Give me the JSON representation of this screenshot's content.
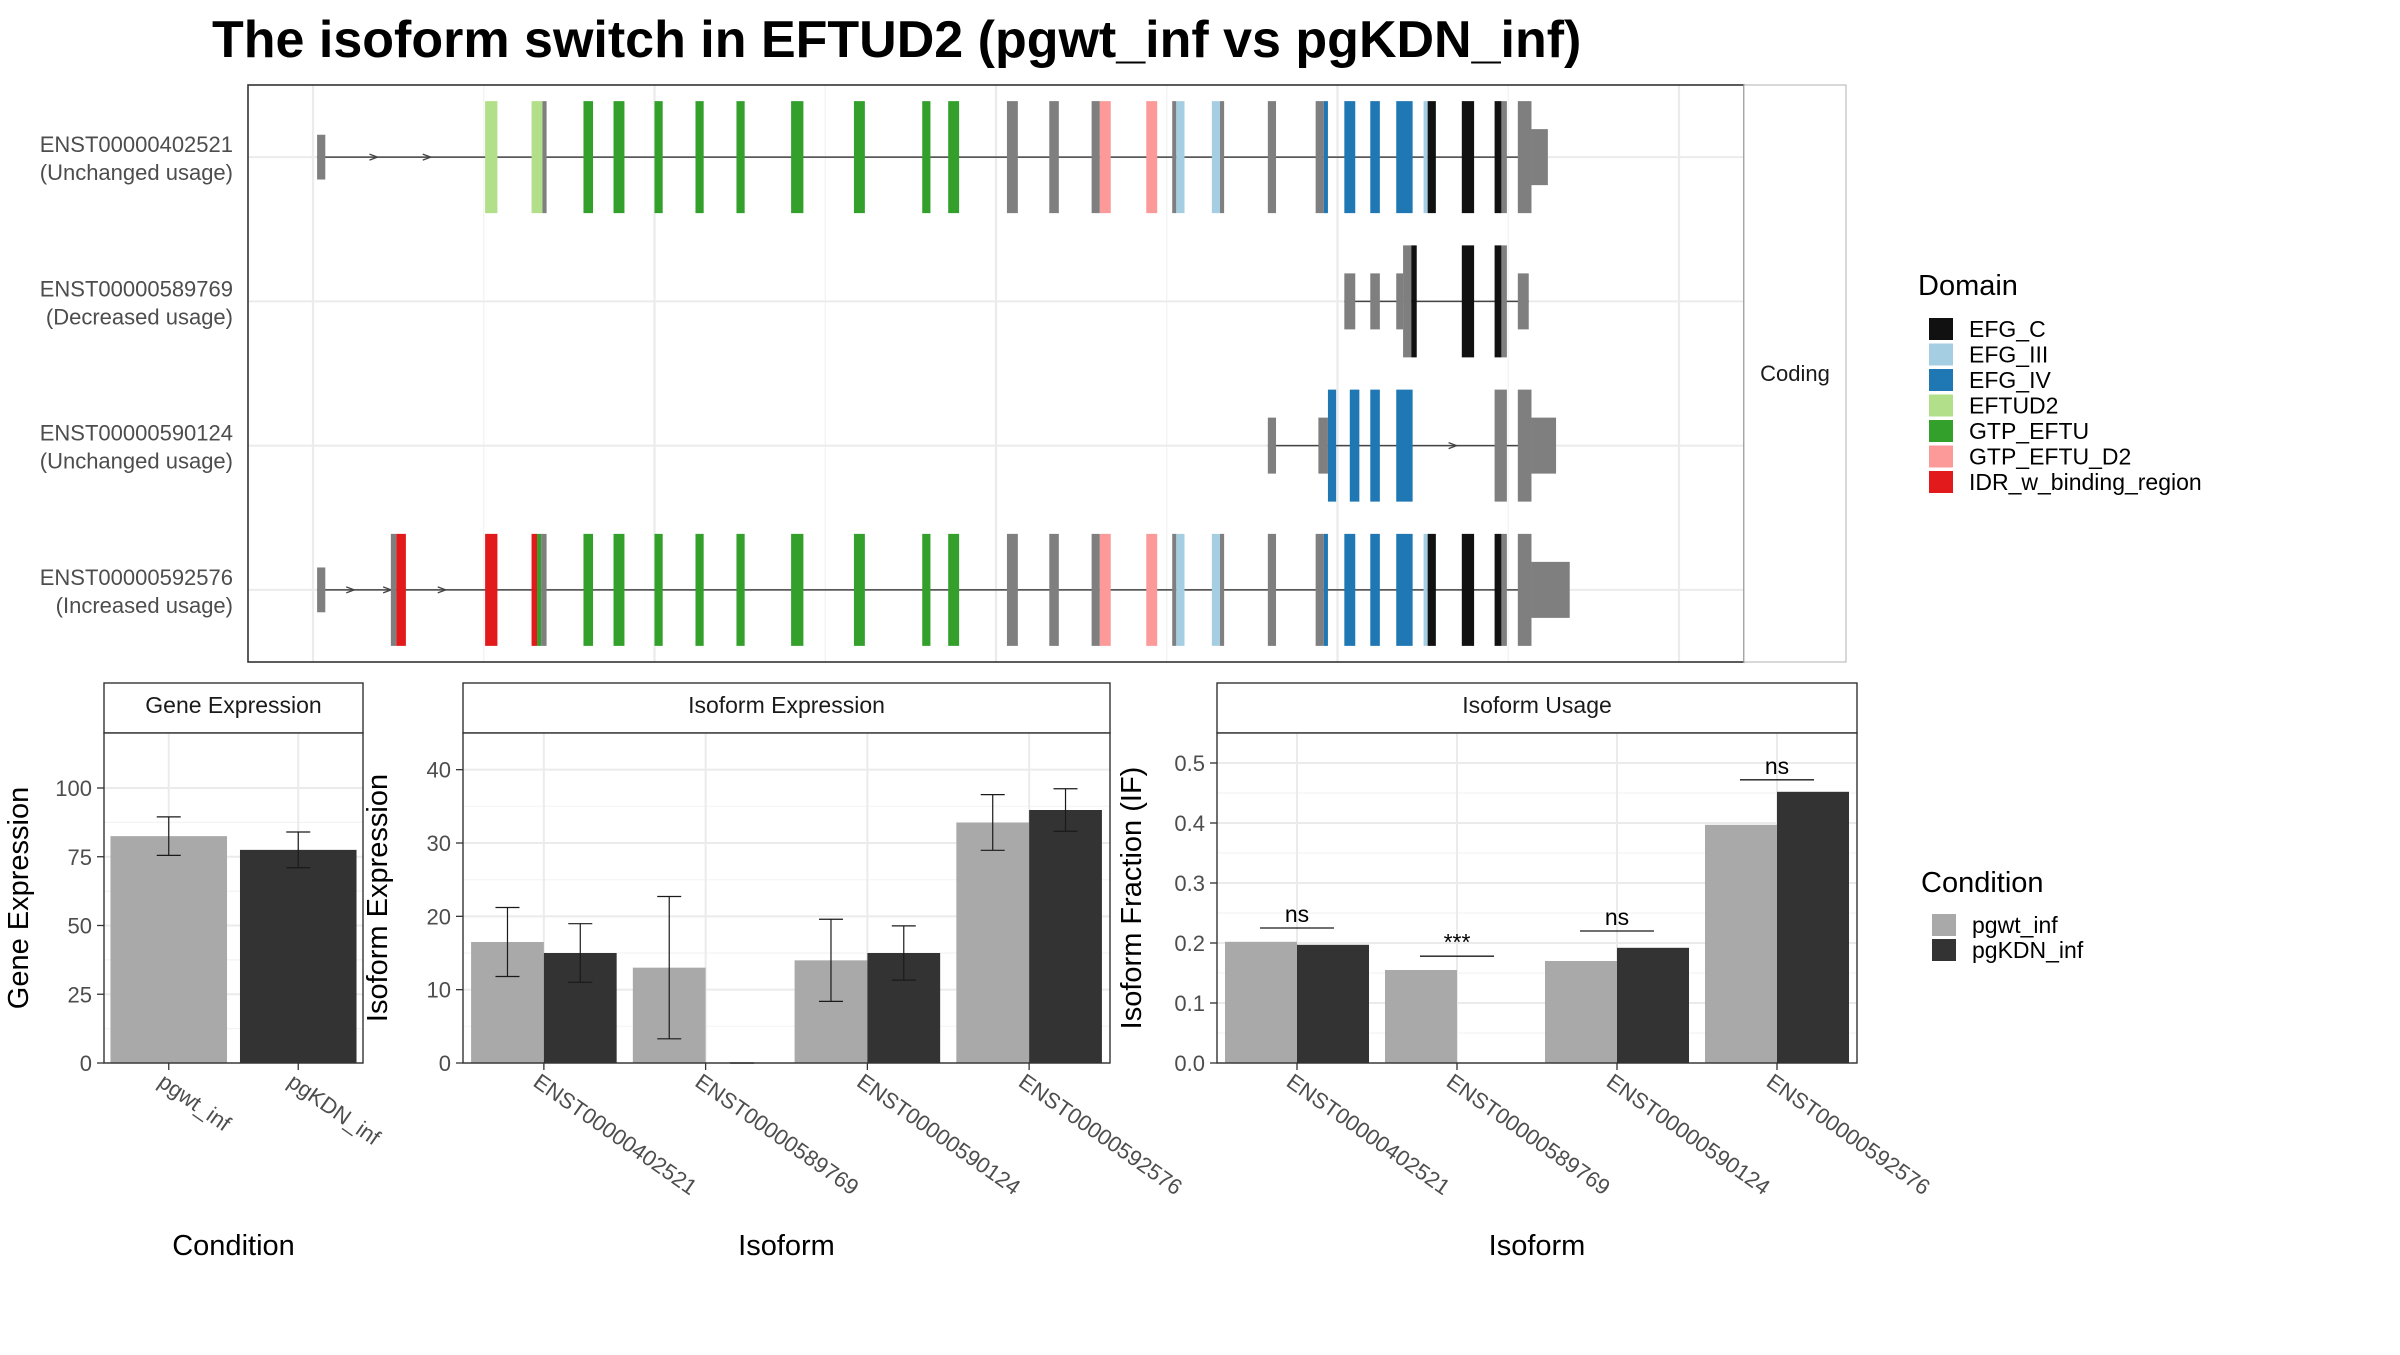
{
  "title": "The isoform switch in EFTUD2 (pgwt_inf vs pgKDN_inf)",
  "structure": {
    "facet_label": "Coding",
    "colors": {
      "intron": "#444444",
      "uncolored_exon": "#7f7f7f",
      "grid": "#ebebeb"
    },
    "transcripts": [
      {
        "id": "ENST00000402521",
        "usage": "(Unchanged usage)",
        "intron_range": [
          0.3,
          89.2
        ],
        "arrows": [
          4.5,
          8.4
        ],
        "exons": [
          {
            "start": 0.3,
            "end": 0.9,
            "h": 0.4,
            "domain": ""
          },
          {
            "start": 12.6,
            "end": 13.5,
            "h": 1,
            "domain": "EFTUD2"
          },
          {
            "start": 16.0,
            "end": 16.8,
            "h": 1,
            "domain": "EFTUD2"
          },
          {
            "start": 16.8,
            "end": 17.1,
            "h": 1,
            "domain": ""
          },
          {
            "start": 19.8,
            "end": 20.5,
            "h": 1,
            "domain": "GTP_EFTU"
          },
          {
            "start": 22.0,
            "end": 22.8,
            "h": 1,
            "domain": "GTP_EFTU"
          },
          {
            "start": 25.0,
            "end": 25.6,
            "h": 1,
            "domain": "GTP_EFTU"
          },
          {
            "start": 28.0,
            "end": 28.6,
            "h": 1,
            "domain": "GTP_EFTU"
          },
          {
            "start": 31.0,
            "end": 31.6,
            "h": 1,
            "domain": "GTP_EFTU"
          },
          {
            "start": 35.0,
            "end": 35.9,
            "h": 1,
            "domain": "GTP_EFTU"
          },
          {
            "start": 39.6,
            "end": 40.4,
            "h": 1,
            "domain": "GTP_EFTU"
          },
          {
            "start": 44.6,
            "end": 45.2,
            "h": 1,
            "domain": "GTP_EFTU"
          },
          {
            "start": 46.5,
            "end": 47.3,
            "h": 1,
            "domain": "GTP_EFTU"
          },
          {
            "start": 50.8,
            "end": 51.6,
            "h": 1,
            "domain": ""
          },
          {
            "start": 53.9,
            "end": 54.6,
            "h": 1,
            "domain": ""
          },
          {
            "start": 57.0,
            "end": 57.6,
            "h": 1,
            "domain": ""
          },
          {
            "start": 57.6,
            "end": 58.4,
            "h": 1,
            "domain": "GTP_EFTU_D2"
          },
          {
            "start": 61.0,
            "end": 61.8,
            "h": 1,
            "domain": "GTP_EFTU_D2"
          },
          {
            "start": 62.9,
            "end": 63.2,
            "h": 1,
            "domain": ""
          },
          {
            "start": 63.2,
            "end": 63.8,
            "h": 1,
            "domain": "EFG_III"
          },
          {
            "start": 65.8,
            "end": 66.4,
            "h": 1,
            "domain": "EFG_III"
          },
          {
            "start": 66.4,
            "end": 66.7,
            "h": 1,
            "domain": ""
          },
          {
            "start": 69.9,
            "end": 70.5,
            "h": 1,
            "domain": ""
          },
          {
            "start": 73.4,
            "end": 74.0,
            "h": 1,
            "domain": ""
          },
          {
            "start": 74.0,
            "end": 74.3,
            "h": 1,
            "domain": "EFG_IV"
          },
          {
            "start": 75.5,
            "end": 76.3,
            "h": 1,
            "domain": "EFG_IV"
          },
          {
            "start": 77.4,
            "end": 78.1,
            "h": 1,
            "domain": "EFG_IV"
          },
          {
            "start": 79.3,
            "end": 80.5,
            "h": 1,
            "domain": "EFG_IV"
          },
          {
            "start": 81.3,
            "end": 81.6,
            "h": 1,
            "domain": "EFG_III"
          },
          {
            "start": 81.6,
            "end": 82.2,
            "h": 1,
            "domain": "EFG_C"
          },
          {
            "start": 84.1,
            "end": 85.0,
            "h": 1,
            "domain": "EFG_C"
          },
          {
            "start": 86.5,
            "end": 87.0,
            "h": 1,
            "domain": "EFG_C"
          },
          {
            "start": 87.0,
            "end": 87.4,
            "h": 1,
            "domain": ""
          },
          {
            "start": 88.2,
            "end": 89.2,
            "h": 1,
            "domain": ""
          },
          {
            "start": 89.2,
            "end": 90.4,
            "h": 0.5,
            "domain": ""
          }
        ]
      },
      {
        "id": "ENST00000589769",
        "usage": "(Decreased usage)",
        "intron_range": [
          75.5,
          89.0
        ],
        "arrows": [],
        "exons": [
          {
            "start": 75.5,
            "end": 76.3,
            "h": 0.5,
            "domain": ""
          },
          {
            "start": 77.4,
            "end": 78.1,
            "h": 0.5,
            "domain": ""
          },
          {
            "start": 79.3,
            "end": 79.8,
            "h": 0.5,
            "domain": ""
          },
          {
            "start": 79.8,
            "end": 80.4,
            "h": 1,
            "domain": ""
          },
          {
            "start": 80.4,
            "end": 80.8,
            "h": 1,
            "domain": "EFG_C"
          },
          {
            "start": 84.1,
            "end": 85.0,
            "h": 1,
            "domain": "EFG_C"
          },
          {
            "start": 86.5,
            "end": 87.0,
            "h": 1,
            "domain": "EFG_C"
          },
          {
            "start": 87.0,
            "end": 87.4,
            "h": 1,
            "domain": ""
          },
          {
            "start": 88.2,
            "end": 89.0,
            "h": 0.5,
            "domain": ""
          }
        ]
      },
      {
        "id": "ENST00000590124",
        "usage": "(Unchanged usage)",
        "intron_range": [
          69.9,
          89.2
        ],
        "arrows": [
          83.5
        ],
        "exons": [
          {
            "start": 69.9,
            "end": 70.5,
            "h": 0.5,
            "domain": ""
          },
          {
            "start": 73.6,
            "end": 74.3,
            "h": 0.5,
            "domain": ""
          },
          {
            "start": 74.3,
            "end": 74.9,
            "h": 1,
            "domain": "EFG_IV"
          },
          {
            "start": 75.9,
            "end": 76.6,
            "h": 1,
            "domain": "EFG_IV"
          },
          {
            "start": 77.4,
            "end": 78.1,
            "h": 1,
            "domain": "EFG_IV"
          },
          {
            "start": 79.3,
            "end": 80.5,
            "h": 1,
            "domain": "EFG_IV"
          },
          {
            "start": 86.5,
            "end": 87.4,
            "h": 1,
            "domain": ""
          },
          {
            "start": 88.2,
            "end": 89.2,
            "h": 1,
            "domain": ""
          },
          {
            "start": 89.2,
            "end": 91.0,
            "h": 0.5,
            "domain": ""
          }
        ]
      },
      {
        "id": "ENST00000592576",
        "usage": "(Increased usage)",
        "intron_range": [
          0.3,
          89.2
        ],
        "arrows": [
          2.8,
          5.5,
          9.5
        ],
        "exons": [
          {
            "start": 0.3,
            "end": 0.9,
            "h": 0.4,
            "domain": ""
          },
          {
            "start": 5.7,
            "end": 6.1,
            "h": 1,
            "domain": ""
          },
          {
            "start": 6.1,
            "end": 6.8,
            "h": 1,
            "domain": "IDR_w_binding_region"
          },
          {
            "start": 12.6,
            "end": 13.5,
            "h": 1,
            "domain": "IDR_w_binding_region"
          },
          {
            "start": 16.0,
            "end": 16.4,
            "h": 1,
            "domain": "IDR_w_binding_region"
          },
          {
            "start": 16.4,
            "end": 16.7,
            "h": 1,
            "domain": "GTP_EFTU"
          },
          {
            "start": 16.7,
            "end": 17.1,
            "h": 1,
            "domain": ""
          },
          {
            "start": 19.8,
            "end": 20.5,
            "h": 1,
            "domain": "GTP_EFTU"
          },
          {
            "start": 22.0,
            "end": 22.8,
            "h": 1,
            "domain": "GTP_EFTU"
          },
          {
            "start": 25.0,
            "end": 25.6,
            "h": 1,
            "domain": "GTP_EFTU"
          },
          {
            "start": 28.0,
            "end": 28.6,
            "h": 1,
            "domain": "GTP_EFTU"
          },
          {
            "start": 31.0,
            "end": 31.6,
            "h": 1,
            "domain": "GTP_EFTU"
          },
          {
            "start": 35.0,
            "end": 35.9,
            "h": 1,
            "domain": "GTP_EFTU"
          },
          {
            "start": 39.6,
            "end": 40.4,
            "h": 1,
            "domain": "GTP_EFTU"
          },
          {
            "start": 44.6,
            "end": 45.2,
            "h": 1,
            "domain": "GTP_EFTU"
          },
          {
            "start": 46.5,
            "end": 47.3,
            "h": 1,
            "domain": "GTP_EFTU"
          },
          {
            "start": 50.8,
            "end": 51.6,
            "h": 1,
            "domain": ""
          },
          {
            "start": 53.9,
            "end": 54.6,
            "h": 1,
            "domain": ""
          },
          {
            "start": 57.0,
            "end": 57.6,
            "h": 1,
            "domain": ""
          },
          {
            "start": 57.6,
            "end": 58.4,
            "h": 1,
            "domain": "GTP_EFTU_D2"
          },
          {
            "start": 61.0,
            "end": 61.8,
            "h": 1,
            "domain": "GTP_EFTU_D2"
          },
          {
            "start": 62.9,
            "end": 63.2,
            "h": 1,
            "domain": ""
          },
          {
            "start": 63.2,
            "end": 63.8,
            "h": 1,
            "domain": "EFG_III"
          },
          {
            "start": 65.8,
            "end": 66.4,
            "h": 1,
            "domain": "EFG_III"
          },
          {
            "start": 66.4,
            "end": 66.7,
            "h": 1,
            "domain": ""
          },
          {
            "start": 69.9,
            "end": 70.5,
            "h": 1,
            "domain": ""
          },
          {
            "start": 73.4,
            "end": 74.0,
            "h": 1,
            "domain": ""
          },
          {
            "start": 74.0,
            "end": 74.3,
            "h": 1,
            "domain": "EFG_IV"
          },
          {
            "start": 75.5,
            "end": 76.3,
            "h": 1,
            "domain": "EFG_IV"
          },
          {
            "start": 77.4,
            "end": 78.1,
            "h": 1,
            "domain": "EFG_IV"
          },
          {
            "start": 79.3,
            "end": 80.5,
            "h": 1,
            "domain": "EFG_IV"
          },
          {
            "start": 81.3,
            "end": 81.6,
            "h": 1,
            "domain": "EFG_III"
          },
          {
            "start": 81.6,
            "end": 82.2,
            "h": 1,
            "domain": "EFG_C"
          },
          {
            "start": 84.1,
            "end": 85.0,
            "h": 1,
            "domain": "EFG_C"
          },
          {
            "start": 86.5,
            "end": 87.0,
            "h": 1,
            "domain": "EFG_C"
          },
          {
            "start": 87.0,
            "end": 87.4,
            "h": 1,
            "domain": ""
          },
          {
            "start": 88.2,
            "end": 89.2,
            "h": 1,
            "domain": ""
          },
          {
            "start": 89.2,
            "end": 92.0,
            "h": 0.5,
            "domain": ""
          }
        ]
      }
    ]
  },
  "domain_legend": {
    "title": "Domain",
    "items": [
      {
        "name": "EFG_C",
        "color": "#111111"
      },
      {
        "name": "EFG_III",
        "color": "#a6cee3"
      },
      {
        "name": "EFG_IV",
        "color": "#1f78b4"
      },
      {
        "name": "EFTUD2",
        "color": "#b2df8a"
      },
      {
        "name": "GTP_EFTU",
        "color": "#33a02c"
      },
      {
        "name": "GTP_EFTU_D2",
        "color": "#fb9a99"
      },
      {
        "name": "IDR_w_binding_region",
        "color": "#e31a1c"
      }
    ]
  },
  "condition_legend": {
    "title": "Condition",
    "items": [
      {
        "name": "pgwt_inf",
        "color": "#a9a9a9"
      },
      {
        "name": "pgKDN_inf",
        "color": "#333333"
      }
    ]
  },
  "chart_data": [
    {
      "type": "bar",
      "title": "Gene Expression",
      "xlabel": "Condition",
      "ylabel": "Gene Expression",
      "ylim": [
        0,
        120
      ],
      "yticks": [
        0,
        25,
        50,
        75,
        100
      ],
      "categories": [
        "pgwt_inf",
        "pgKDN_inf"
      ],
      "values": [
        82.5,
        77.5
      ],
      "err": [
        [
          75.5,
          89.5
        ],
        [
          71.0,
          84.0
        ]
      ],
      "colors": [
        "#a9a9a9",
        "#333333"
      ]
    },
    {
      "type": "bar",
      "title": "Isoform Expression",
      "xlabel": "Isoform",
      "ylabel": "Isoform Expression",
      "ylim": [
        0,
        45
      ],
      "yticks": [
        0,
        10,
        20,
        30,
        40
      ],
      "categories": [
        "ENST00000402521",
        "ENST00000589769",
        "ENST00000590124",
        "ENST00000592576"
      ],
      "series": [
        {
          "name": "pgwt_inf",
          "color": "#a9a9a9",
          "values": [
            16.5,
            13.0,
            14.0,
            32.8
          ],
          "err": [
            [
              11.8,
              21.2
            ],
            [
              3.3,
              22.7
            ],
            [
              8.4,
              19.6
            ],
            [
              29.0,
              36.6
            ]
          ]
        },
        {
          "name": "pgKDN_inf",
          "color": "#333333",
          "values": [
            15.0,
            0.0,
            15.0,
            34.5
          ],
          "err": [
            [
              11.0,
              19.0
            ],
            [
              0.0,
              0.0
            ],
            [
              11.3,
              18.7
            ],
            [
              31.6,
              37.4
            ]
          ]
        }
      ]
    },
    {
      "type": "bar",
      "title": "Isoform Usage",
      "xlabel": "Isoform",
      "ylabel": "Isoform Fraction (IF)",
      "ylim": [
        0,
        0.55
      ],
      "yticks": [
        "0.0",
        "0.1",
        "0.2",
        "0.3",
        "0.4",
        "0.5"
      ],
      "categories": [
        "ENST00000402521",
        "ENST00000589769",
        "ENST00000590124",
        "ENST00000592576"
      ],
      "significance": [
        "ns",
        "***",
        "ns",
        "ns"
      ],
      "sig_y": [
        0.225,
        0.178,
        0.22,
        0.472
      ],
      "series": [
        {
          "name": "pgwt_inf",
          "color": "#a9a9a9",
          "values": [
            0.202,
            0.155,
            0.17,
            0.397
          ]
        },
        {
          "name": "pgKDN_inf",
          "color": "#333333",
          "values": [
            0.197,
            0.0,
            0.192,
            0.452
          ]
        }
      ]
    }
  ]
}
